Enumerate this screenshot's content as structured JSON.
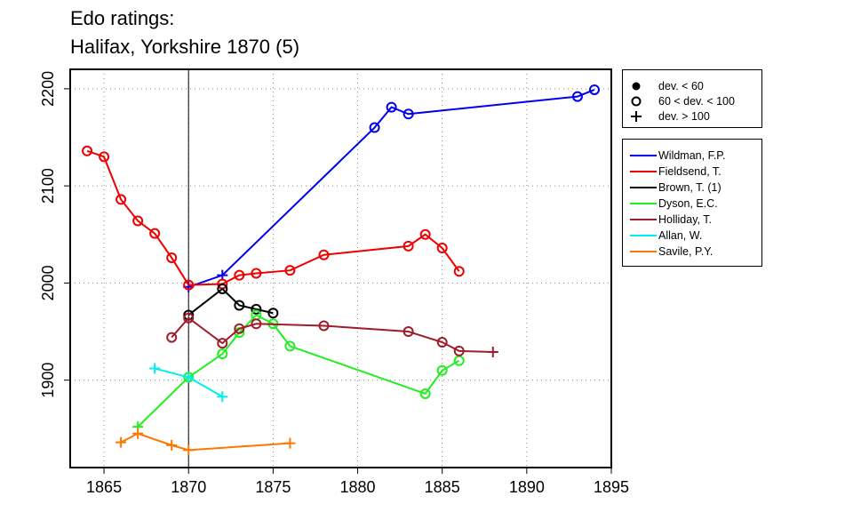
{
  "title_line1": "Edo ratings:",
  "title_line2": "Halifax, Yorkshire 1870 (5)",
  "marker_legend": [
    {
      "symbol": "filled-circle",
      "label": "dev. < 60"
    },
    {
      "symbol": "open-circle",
      "label": "60 < dev. < 100"
    },
    {
      "symbol": "plus",
      "label": "dev. > 100"
    }
  ],
  "chart_data": {
    "type": "line",
    "title": "Edo ratings: Halifax, Yorkshire 1870 (5)",
    "xlabel": "",
    "ylabel": "",
    "xlim": [
      1863,
      1895
    ],
    "ylim": [
      1810,
      2220
    ],
    "xticks": [
      "1865",
      "1870",
      "1875",
      "1880",
      "1885",
      "1890",
      "1895"
    ],
    "yticks": [
      "1900",
      "2000",
      "2100",
      "2200"
    ],
    "grid": true,
    "vline_x": 1870,
    "legend_position": "right",
    "series": [
      {
        "name": "Wildman, F.P.",
        "color": "#0000ee",
        "points": [
          {
            "x": 1870,
            "y": 1996,
            "m": "plus"
          },
          {
            "x": 1872,
            "y": 2008,
            "m": "plus"
          },
          {
            "x": 1881,
            "y": 2160,
            "m": "open-circle"
          },
          {
            "x": 1882,
            "y": 2181,
            "m": "open-circle"
          },
          {
            "x": 1883,
            "y": 2174,
            "m": "open-circle"
          },
          {
            "x": 1893,
            "y": 2192,
            "m": "open-circle"
          },
          {
            "x": 1894,
            "y": 2199,
            "m": "open-circle"
          }
        ]
      },
      {
        "name": "Fieldsend, T.",
        "color": "#ee0000",
        "points": [
          {
            "x": 1864,
            "y": 2136,
            "m": "open-circle"
          },
          {
            "x": 1865,
            "y": 2130,
            "m": "open-circle"
          },
          {
            "x": 1866,
            "y": 2086,
            "m": "open-circle"
          },
          {
            "x": 1867,
            "y": 2064,
            "m": "open-circle"
          },
          {
            "x": 1868,
            "y": 2051,
            "m": "open-circle"
          },
          {
            "x": 1869,
            "y": 2026,
            "m": "open-circle"
          },
          {
            "x": 1870,
            "y": 1998,
            "m": "open-circle"
          },
          {
            "x": 1872,
            "y": 1999,
            "m": "open-circle"
          },
          {
            "x": 1873,
            "y": 2008,
            "m": "open-circle"
          },
          {
            "x": 1874,
            "y": 2010,
            "m": "open-circle"
          },
          {
            "x": 1876,
            "y": 2013,
            "m": "open-circle"
          },
          {
            "x": 1878,
            "y": 2029,
            "m": "open-circle"
          },
          {
            "x": 1883,
            "y": 2038,
            "m": "open-circle"
          },
          {
            "x": 1884,
            "y": 2050,
            "m": "open-circle"
          },
          {
            "x": 1885,
            "y": 2036,
            "m": "open-circle"
          },
          {
            "x": 1886,
            "y": 2012,
            "m": "open-circle"
          }
        ]
      },
      {
        "name": "Brown, T. (1)",
        "color": "#000000",
        "points": [
          {
            "x": 1870,
            "y": 1967,
            "m": "open-circle"
          },
          {
            "x": 1872,
            "y": 1994,
            "m": "open-circle"
          },
          {
            "x": 1873,
            "y": 1977,
            "m": "open-circle"
          },
          {
            "x": 1874,
            "y": 1973,
            "m": "open-circle"
          },
          {
            "x": 1875,
            "y": 1969,
            "m": "open-circle"
          }
        ]
      },
      {
        "name": "Dyson, E.C.",
        "color": "#22ee22",
        "points": [
          {
            "x": 1867,
            "y": 1852,
            "m": "plus"
          },
          {
            "x": 1870,
            "y": 1903,
            "m": "open-circle"
          },
          {
            "x": 1872,
            "y": 1927,
            "m": "open-circle"
          },
          {
            "x": 1873,
            "y": 1949,
            "m": "open-circle"
          },
          {
            "x": 1874,
            "y": 1967,
            "m": "open-circle"
          },
          {
            "x": 1875,
            "y": 1958,
            "m": "open-circle"
          },
          {
            "x": 1876,
            "y": 1935,
            "m": "open-circle"
          },
          {
            "x": 1884,
            "y": 1886,
            "m": "open-circle"
          },
          {
            "x": 1885,
            "y": 1910,
            "m": "open-circle"
          },
          {
            "x": 1886,
            "y": 1920,
            "m": "open-circle"
          }
        ]
      },
      {
        "name": "Holliday, T.",
        "color": "#a01c2c",
        "points": [
          {
            "x": 1869,
            "y": 1944,
            "m": "open-circle"
          },
          {
            "x": 1870,
            "y": 1964,
            "m": "open-circle"
          },
          {
            "x": 1872,
            "y": 1938,
            "m": "open-circle"
          },
          {
            "x": 1873,
            "y": 1953,
            "m": "open-circle"
          },
          {
            "x": 1874,
            "y": 1958,
            "m": "open-circle"
          },
          {
            "x": 1878,
            "y": 1956,
            "m": "open-circle"
          },
          {
            "x": 1883,
            "y": 1950,
            "m": "open-circle"
          },
          {
            "x": 1885,
            "y": 1939,
            "m": "open-circle"
          },
          {
            "x": 1886,
            "y": 1930,
            "m": "open-circle"
          },
          {
            "x": 1888,
            "y": 1929,
            "m": "plus"
          }
        ]
      },
      {
        "name": "Allan, W.",
        "color": "#00eeee",
        "points": [
          {
            "x": 1868,
            "y": 1912,
            "m": "plus"
          },
          {
            "x": 1870,
            "y": 1903,
            "m": "plus"
          },
          {
            "x": 1872,
            "y": 1883,
            "m": "plus"
          }
        ]
      },
      {
        "name": "Savile, P.Y.",
        "color": "#ff7700",
        "points": [
          {
            "x": 1866,
            "y": 1836,
            "m": "plus"
          },
          {
            "x": 1867,
            "y": 1845,
            "m": "plus"
          },
          {
            "x": 1869,
            "y": 1833,
            "m": "plus"
          },
          {
            "x": 1870,
            "y": 1828,
            "m": "plus"
          },
          {
            "x": 1876,
            "y": 1835,
            "m": "plus"
          }
        ]
      }
    ]
  }
}
